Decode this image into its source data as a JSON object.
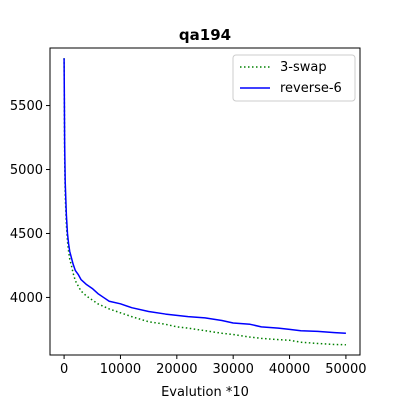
{
  "chart_data": {
    "type": "line",
    "title": "qa194",
    "xlabel": "Evalution *10",
    "ylabel": "",
    "xlim": [
      -2500,
      52500
    ],
    "ylim": [
      3550,
      5950
    ],
    "x_ticks": [
      0,
      10000,
      20000,
      30000,
      40000,
      50000
    ],
    "x_tick_labels": [
      "0",
      "10000",
      "20000",
      "30000",
      "40000",
      "50000"
    ],
    "y_ticks": [
      4000,
      4500,
      5000,
      5500
    ],
    "y_tick_labels": [
      "4000",
      "4500",
      "5000",
      "5500"
    ],
    "grid": false,
    "legend_position": "upper-right",
    "series": [
      {
        "name": "3-swap",
        "color": "#008000",
        "line_style": "dotted",
        "x": [
          0,
          100,
          200,
          400,
          600,
          800,
          1000,
          1300,
          1600,
          2000,
          2500,
          3000,
          4000,
          5000,
          6000,
          7000,
          8000,
          10000,
          12000,
          15000,
          18000,
          20000,
          22000,
          25000,
          28000,
          30000,
          33000,
          35000,
          38000,
          40000,
          42000,
          45000,
          48000,
          50000
        ],
        "y": [
          5870,
          5100,
          4800,
          4570,
          4440,
          4360,
          4300,
          4250,
          4190,
          4130,
          4090,
          4050,
          4010,
          3980,
          3950,
          3930,
          3910,
          3880,
          3850,
          3810,
          3790,
          3770,
          3760,
          3740,
          3720,
          3710,
          3690,
          3680,
          3670,
          3665,
          3650,
          3640,
          3632,
          3630
        ]
      },
      {
        "name": "reverse-6",
        "color": "#0000ff",
        "line_style": "solid",
        "x": [
          0,
          100,
          200,
          400,
          600,
          800,
          1000,
          1300,
          1600,
          2000,
          2500,
          3000,
          4000,
          5000,
          6000,
          7000,
          8000,
          10000,
          12000,
          15000,
          18000,
          20000,
          22000,
          25000,
          28000,
          30000,
          33000,
          35000,
          38000,
          40000,
          42000,
          45000,
          48000,
          50000
        ],
        "y": [
          5870,
          5200,
          4900,
          4650,
          4500,
          4420,
          4360,
          4310,
          4260,
          4210,
          4180,
          4140,
          4100,
          4070,
          4030,
          4000,
          3970,
          3950,
          3920,
          3890,
          3870,
          3860,
          3850,
          3840,
          3820,
          3800,
          3790,
          3770,
          3760,
          3750,
          3740,
          3735,
          3725,
          3720
        ]
      }
    ]
  }
}
